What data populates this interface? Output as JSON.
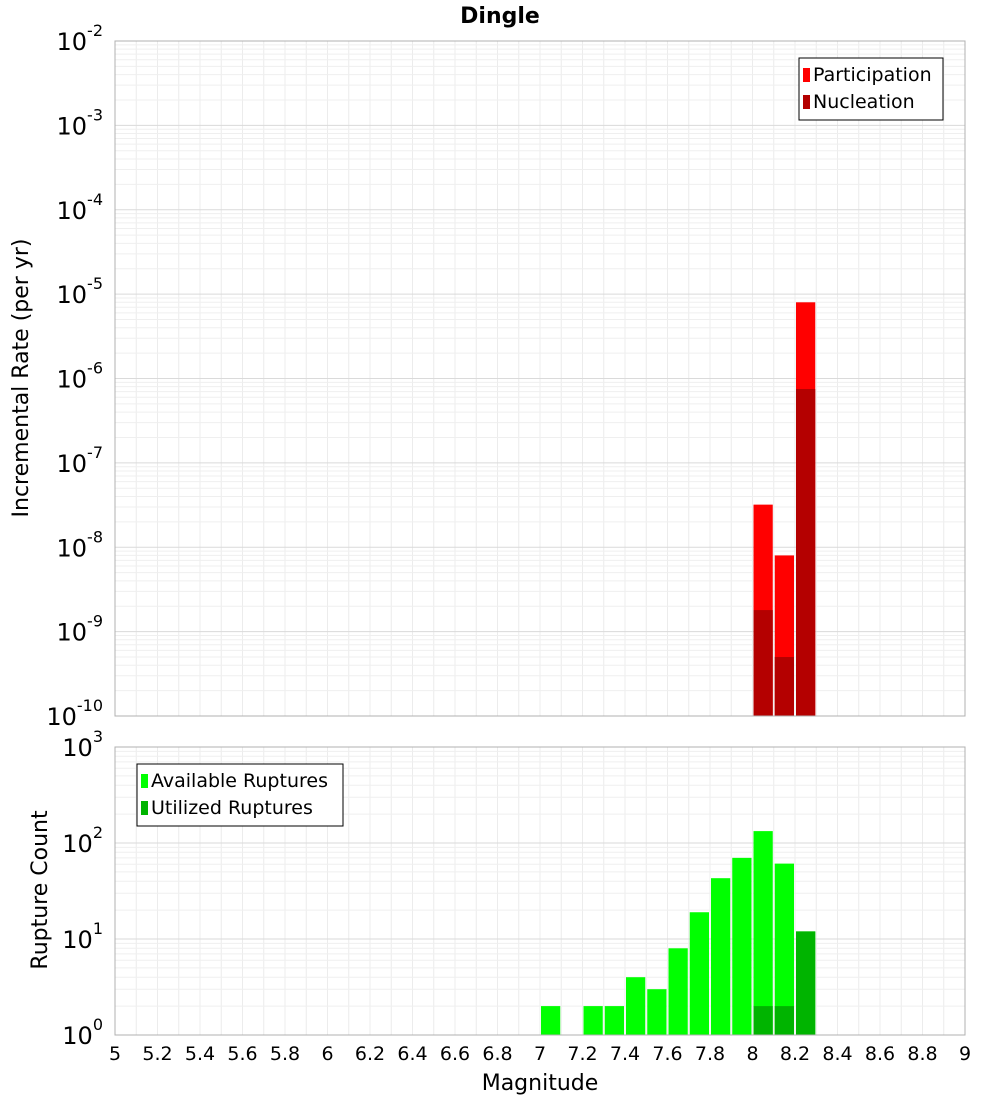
{
  "chart_data": [
    {
      "type": "bar",
      "title": "Dingle",
      "ylabel": "Incremental Rate (per yr)",
      "xlabel": "",
      "y_scale": "log",
      "ylim_exponents": [
        -10,
        -2
      ],
      "xlim": [
        5,
        9
      ],
      "grid": true,
      "legend_placement": "top-right",
      "bar_width_mag": 0.1,
      "series": [
        {
          "name": "Participation",
          "color": "#ff0000",
          "points": [
            {
              "x": 8.05,
              "y": 3.2e-08
            },
            {
              "x": 8.15,
              "y": 8e-09
            },
            {
              "x": 8.25,
              "y": 8e-06
            }
          ]
        },
        {
          "name": "Nucleation",
          "color": "#b40000",
          "points": [
            {
              "x": 8.05,
              "y": 1.8e-09
            },
            {
              "x": 8.15,
              "y": 5e-10
            },
            {
              "x": 8.25,
              "y": 7.5e-07
            }
          ]
        }
      ]
    },
    {
      "type": "bar",
      "title": "",
      "ylabel": "Rupture Count",
      "xlabel": "Magnitude",
      "y_scale": "log",
      "ylim_exponents": [
        0,
        3
      ],
      "xlim": [
        5,
        9
      ],
      "grid": true,
      "legend_placement": "top-left",
      "bar_width_mag": 0.1,
      "x_ticks": [
        "5",
        "5.2",
        "5.4",
        "5.6",
        "5.8",
        "6",
        "6.2",
        "6.4",
        "6.6",
        "6.8",
        "7",
        "7.2",
        "7.4",
        "7.6",
        "7.8",
        "8",
        "8.2",
        "8.4",
        "8.6",
        "8.8",
        "9"
      ],
      "series": [
        {
          "name": "Available Ruptures",
          "color": "#00ff00",
          "points": [
            {
              "x": 7.05,
              "y": 2
            },
            {
              "x": 7.25,
              "y": 2
            },
            {
              "x": 7.35,
              "y": 2
            },
            {
              "x": 7.45,
              "y": 4
            },
            {
              "x": 7.55,
              "y": 3
            },
            {
              "x": 7.65,
              "y": 8
            },
            {
              "x": 7.75,
              "y": 19
            },
            {
              "x": 7.85,
              "y": 43
            },
            {
              "x": 7.95,
              "y": 70
            },
            {
              "x": 8.05,
              "y": 133
            },
            {
              "x": 8.15,
              "y": 61
            },
            {
              "x": 8.25,
              "y": 12
            }
          ]
        },
        {
          "name": "Utilized Ruptures",
          "color": "#00b400",
          "points": [
            {
              "x": 8.05,
              "y": 2
            },
            {
              "x": 8.15,
              "y": 2
            },
            {
              "x": 8.25,
              "y": 12
            }
          ]
        }
      ]
    }
  ]
}
